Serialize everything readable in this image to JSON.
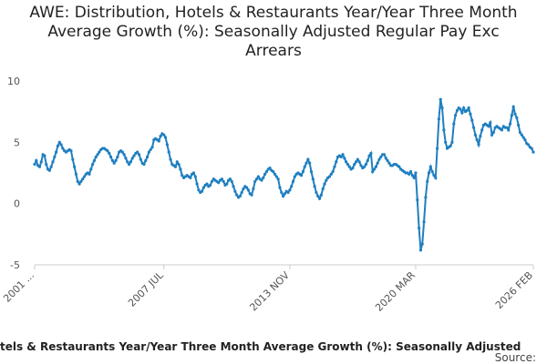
{
  "chart_data": {
    "type": "line",
    "title": "AWE: Distribution, Hotels & Restaurants Year/Year Three Month Average Growth (%): Seasonally Adjusted Regular Pay Exc Arrears",
    "x_label": "tels & Restaurants Year/Year Three Month Average Growth (%): Seasonally Adjusted",
    "source": "Source:",
    "categories": [
      "2001 ...",
      null,
      null,
      null,
      null,
      null,
      null,
      null,
      null,
      null,
      null,
      null,
      null,
      null,
      null,
      null,
      null,
      null,
      null,
      null,
      null,
      null,
      null,
      null,
      null,
      null,
      null,
      null,
      null,
      null,
      null,
      null,
      null,
      null,
      null,
      null,
      null,
      null,
      null,
      null,
      null,
      null,
      null,
      null,
      null,
      null,
      null,
      null,
      null,
      null,
      null,
      null,
      null,
      null,
      null,
      null,
      null,
      null,
      null,
      null,
      null,
      null,
      null,
      null,
      null,
      null,
      null,
      null,
      null,
      null,
      null,
      null,
      null,
      null,
      null,
      null,
      null,
      null,
      "2007 JUL",
      null,
      null,
      null,
      null,
      null,
      null,
      null,
      null,
      null,
      null,
      null,
      null,
      null,
      null,
      null,
      null,
      null,
      null,
      null,
      null,
      null,
      null,
      null,
      null,
      null,
      null,
      null,
      null,
      null,
      null,
      null,
      null,
      null,
      null,
      null,
      null,
      null,
      null,
      null,
      null,
      null,
      null,
      null,
      null,
      null,
      null,
      null,
      null,
      null,
      null,
      null,
      null,
      null,
      null,
      null,
      null,
      null,
      null,
      null,
      null,
      null,
      null,
      null,
      null,
      null,
      null,
      null,
      null,
      null,
      null,
      null,
      null,
      null,
      null,
      null,
      "2013 NOV",
      null,
      null,
      null,
      null,
      null,
      null,
      null,
      null,
      null,
      null,
      null,
      null,
      null,
      null,
      null,
      null,
      null,
      null,
      null,
      null,
      null,
      null,
      null,
      null,
      null,
      null,
      null,
      null,
      null,
      null,
      null,
      null,
      null,
      null,
      null,
      null,
      null,
      null,
      null,
      null,
      null,
      null,
      null,
      null,
      null,
      null,
      null,
      null,
      null,
      null,
      null,
      null,
      null,
      null,
      null,
      null,
      null,
      null,
      null,
      null,
      null,
      null,
      null,
      null,
      null,
      null,
      null,
      null,
      null,
      null,
      null,
      null,
      null,
      null,
      null,
      "2020 MAR",
      null,
      null,
      null,
      null,
      null,
      null,
      null,
      null,
      null,
      null,
      null,
      null,
      null,
      null,
      null,
      null,
      null,
      null,
      null,
      null,
      null,
      null,
      null,
      null,
      null,
      null,
      null,
      null,
      null,
      null,
      null,
      null,
      null,
      null,
      null,
      null,
      null,
      null,
      null,
      null,
      null,
      null,
      null,
      null,
      null,
      null,
      null,
      null,
      null,
      null,
      null,
      null,
      null,
      null,
      null,
      null,
      null,
      null,
      null,
      null,
      null,
      null,
      null,
      null,
      null,
      null,
      null,
      null,
      null,
      null,
      "2026 FEB"
    ],
    "series": [
      {
        "color": "#1f7fc0",
        "values": [
          3.2,
          3.5,
          3.1,
          3.0,
          3.4,
          4.0,
          3.9,
          3.2,
          2.8,
          2.7,
          3.0,
          3.4,
          3.8,
          4.2,
          4.7,
          5.0,
          4.8,
          4.5,
          4.3,
          4.2,
          4.3,
          4.4,
          4.3,
          3.6,
          3.0,
          2.4,
          1.8,
          1.6,
          1.8,
          2.0,
          2.2,
          2.4,
          2.5,
          2.4,
          2.8,
          3.2,
          3.5,
          3.8,
          4.0,
          4.2,
          4.4,
          4.5,
          4.5,
          4.4,
          4.3,
          4.1,
          3.8,
          3.5,
          3.3,
          3.5,
          3.8,
          4.2,
          4.3,
          4.2,
          4.0,
          3.7,
          3.4,
          3.2,
          3.4,
          3.7,
          3.9,
          4.1,
          4.2,
          4.0,
          3.6,
          3.3,
          3.2,
          3.5,
          3.8,
          4.2,
          4.4,
          4.6,
          5.2,
          5.3,
          5.2,
          5.1,
          5.5,
          5.7,
          5.6,
          5.4,
          4.8,
          4.2,
          3.6,
          3.2,
          3.1,
          3.0,
          3.4,
          3.2,
          2.8,
          2.3,
          2.1,
          2.2,
          2.3,
          2.2,
          2.1,
          2.4,
          2.5,
          2.2,
          1.6,
          1.1,
          0.9,
          1.0,
          1.3,
          1.5,
          1.6,
          1.4,
          1.5,
          1.8,
          2.0,
          1.9,
          1.8,
          1.7,
          1.9,
          2.0,
          1.8,
          1.5,
          1.6,
          1.9,
          2.0,
          1.8,
          1.4,
          1.0,
          0.7,
          0.5,
          0.6,
          0.9,
          1.2,
          1.4,
          1.3,
          1.1,
          0.8,
          0.7,
          1.2,
          1.8,
          2.0,
          2.2,
          2.0,
          1.9,
          2.1,
          2.4,
          2.6,
          2.8,
          2.9,
          2.7,
          2.6,
          2.4,
          2.2,
          2.0,
          1.3,
          0.9,
          0.6,
          0.8,
          1.0,
          0.9,
          1.1,
          1.4,
          1.8,
          2.2,
          2.4,
          2.5,
          2.4,
          2.3,
          2.6,
          3.0,
          3.3,
          3.6,
          3.3,
          2.6,
          2.0,
          1.4,
          0.9,
          0.6,
          0.4,
          0.7,
          1.2,
          1.6,
          1.9,
          2.1,
          2.2,
          2.4,
          2.6,
          3.0,
          3.4,
          3.8,
          3.9,
          3.8,
          4.0,
          3.7,
          3.4,
          3.2,
          3.0,
          2.8,
          2.9,
          3.2,
          3.4,
          3.6,
          3.4,
          3.1,
          2.9,
          3.0,
          3.2,
          3.5,
          3.9,
          4.1,
          2.6,
          2.8,
          3.0,
          3.3,
          3.6,
          3.8,
          4.0,
          4.0,
          3.7,
          3.5,
          3.3,
          3.1,
          3.1,
          3.2,
          3.2,
          3.1,
          3.0,
          2.8,
          2.7,
          2.6,
          2.5,
          2.5,
          2.4,
          2.6,
          2.3,
          2.1,
          2.5,
          0.3,
          -2.0,
          -3.8,
          -3.3,
          -1.5,
          0.5,
          1.8,
          2.5,
          3.0,
          2.6,
          2.3,
          2.1,
          4.5,
          6.9,
          8.5,
          7.8,
          6.0,
          5.0,
          4.5,
          4.6,
          4.7,
          5.0,
          6.5,
          7.2,
          7.6,
          7.8,
          7.7,
          7.4,
          7.8,
          7.5,
          7.6,
          7.8,
          7.3,
          6.8,
          6.2,
          5.6,
          5.2,
          4.8,
          5.5,
          6.0,
          6.4,
          6.5,
          6.4,
          6.3,
          6.6,
          5.6,
          5.8,
          6.2,
          6.3,
          6.2,
          6.1,
          6.0,
          6.3,
          6.2,
          6.2,
          6.0,
          6.5,
          7.2,
          7.9,
          7.3,
          7.0,
          6.4,
          5.8,
          5.6,
          5.4,
          5.2,
          4.9,
          4.8,
          4.6,
          4.5,
          4.2
        ]
      }
    ],
    "ylim": [
      -5,
      10
    ],
    "yticks": [
      -5,
      0,
      5,
      10
    ],
    "grid": false
  }
}
